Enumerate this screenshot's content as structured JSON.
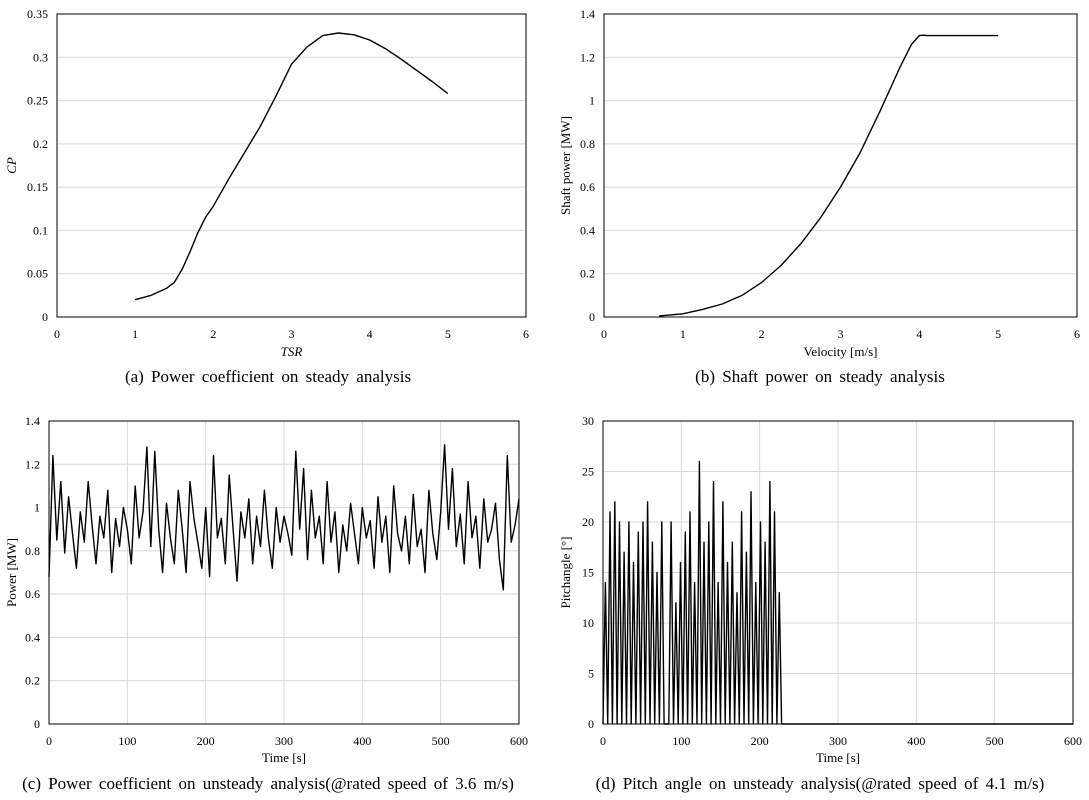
{
  "figure": {
    "charts": [
      {
        "id": "a",
        "caption": "(a)  Power coefficient on steady analysis",
        "xlabel": "TSR",
        "ylabel": "CP",
        "label_style": "italic",
        "x_ticks": [
          "0",
          "1",
          "2",
          "3",
          "4",
          "5",
          "6"
        ],
        "y_ticks": [
          "0",
          "0.05",
          "0.1",
          "0.15",
          "0.2",
          "0.25",
          "0.3",
          "0.35"
        ]
      },
      {
        "id": "b",
        "caption": "(b)  Shaft power on steady analysis",
        "xlabel": "Velocity [m/s]",
        "ylabel": "Shaft power [MW]",
        "label_style": "normal",
        "x_ticks": [
          "0",
          "1",
          "2",
          "3",
          "4",
          "5",
          "6"
        ],
        "y_ticks": [
          "0",
          "0.2",
          "0.4",
          "0.6",
          "0.8",
          "1",
          "1.2",
          "1.4"
        ]
      },
      {
        "id": "c",
        "caption": "(c)  Power coefficient on unsteady analysis(@rated speed of 3.6 m/s)",
        "xlabel": "Time [s]",
        "ylabel": "Power [MW]",
        "label_style": "normal",
        "x_ticks": [
          "0",
          "100",
          "200",
          "300",
          "400",
          "500",
          "600"
        ],
        "y_ticks": [
          "0",
          "0.2",
          "0.4",
          "0.6",
          "0.8",
          "1",
          "1.2",
          "1.4"
        ]
      },
      {
        "id": "d",
        "caption": "(d)  Pitch angle on unsteady analysis(@rated speed of 4.1 m/s)",
        "xlabel": "Time [s]",
        "ylabel": "Pitchangle [°]",
        "label_style": "normal",
        "x_ticks": [
          "0",
          "100",
          "200",
          "300",
          "400",
          "500",
          "600"
        ],
        "y_ticks": [
          "0",
          "5",
          "10",
          "15",
          "20",
          "25",
          "30"
        ]
      }
    ]
  },
  "chart_data": [
    {
      "type": "line",
      "title": "",
      "xlabel": "TSR",
      "ylabel": "CP",
      "xlim": [
        0,
        6
      ],
      "ylim": [
        0,
        0.35
      ],
      "grid": "horizontal",
      "series": [
        {
          "color": "#000000",
          "x": [
            1.0,
            1.2,
            1.4,
            1.5,
            1.6,
            1.7,
            1.8,
            1.9,
            2.0,
            2.2,
            2.4,
            2.6,
            2.8,
            3.0,
            3.2,
            3.4,
            3.6,
            3.8,
            4.0,
            4.2,
            4.4,
            4.6,
            4.8,
            5.0
          ],
          "y": [
            0.02,
            0.025,
            0.033,
            0.04,
            0.055,
            0.075,
            0.097,
            0.115,
            0.128,
            0.16,
            0.19,
            0.22,
            0.255,
            0.292,
            0.312,
            0.325,
            0.328,
            0.326,
            0.32,
            0.31,
            0.298,
            0.285,
            0.272,
            0.258
          ]
        }
      ]
    },
    {
      "type": "line",
      "title": "",
      "xlabel": "Velocity [m/s]",
      "ylabel": "Shaft power [MW]",
      "xlim": [
        0,
        6
      ],
      "ylim": [
        0,
        1.4
      ],
      "grid": "horizontal",
      "series": [
        {
          "color": "#000000",
          "x": [
            0.7,
            1.0,
            1.25,
            1.5,
            1.75,
            2.0,
            2.25,
            2.5,
            2.75,
            3.0,
            3.25,
            3.5,
            3.75,
            3.9,
            4.0,
            4.05,
            4.1,
            4.5,
            5.0
          ],
          "y": [
            0.005,
            0.015,
            0.035,
            0.06,
            0.1,
            0.16,
            0.24,
            0.34,
            0.46,
            0.6,
            0.76,
            0.95,
            1.15,
            1.26,
            1.3,
            1.302,
            1.3,
            1.3,
            1.3
          ]
        }
      ]
    },
    {
      "type": "line",
      "title": "",
      "xlabel": "Time [s]",
      "ylabel": "Power [MW]",
      "xlim": [
        0,
        600
      ],
      "ylim": [
        0,
        1.4
      ],
      "grid": "both",
      "series": [
        {
          "color": "#000000",
          "x": [
            0,
            5,
            10,
            15,
            20,
            25,
            30,
            35,
            40,
            45,
            50,
            55,
            60,
            65,
            70,
            75,
            80,
            85,
            90,
            95,
            100,
            105,
            110,
            115,
            120,
            125,
            130,
            135,
            140,
            145,
            150,
            155,
            160,
            165,
            170,
            175,
            180,
            185,
            190,
            195,
            200,
            205,
            210,
            215,
            220,
            225,
            230,
            235,
            240,
            245,
            250,
            255,
            260,
            265,
            270,
            275,
            280,
            285,
            290,
            295,
            300,
            305,
            310,
            315,
            320,
            325,
            330,
            335,
            340,
            345,
            350,
            355,
            360,
            365,
            370,
            375,
            380,
            385,
            390,
            395,
            400,
            405,
            410,
            415,
            420,
            425,
            430,
            435,
            440,
            445,
            450,
            455,
            460,
            465,
            470,
            475,
            480,
            485,
            490,
            495,
            500,
            505,
            510,
            515,
            520,
            525,
            530,
            535,
            540,
            545,
            550,
            555,
            560,
            565,
            570,
            575,
            580,
            585,
            590,
            595,
            600
          ],
          "y": [
            0.68,
            1.24,
            0.85,
            1.12,
            0.79,
            1.05,
            0.88,
            0.72,
            0.98,
            0.84,
            1.12,
            0.92,
            0.74,
            0.96,
            0.86,
            1.08,
            0.7,
            0.95,
            0.82,
            1.0,
            0.9,
            0.74,
            1.1,
            0.86,
            0.98,
            1.28,
            0.82,
            1.26,
            0.9,
            0.7,
            1.02,
            0.86,
            0.74,
            1.08,
            0.9,
            0.7,
            1.12,
            0.95,
            0.84,
            0.72,
            1.0,
            0.68,
            1.24,
            0.86,
            0.95,
            0.74,
            1.15,
            0.9,
            0.66,
            0.98,
            0.86,
            1.04,
            0.74,
            0.96,
            0.82,
            1.08,
            0.86,
            0.72,
            1.0,
            0.84,
            0.96,
            0.88,
            0.78,
            1.26,
            0.9,
            1.18,
            0.76,
            1.08,
            0.86,
            0.96,
            0.74,
            1.12,
            0.84,
            0.98,
            0.7,
            0.92,
            0.8,
            1.02,
            0.88,
            0.74,
            1.0,
            0.86,
            0.94,
            0.72,
            1.05,
            0.84,
            0.96,
            0.7,
            1.1,
            0.88,
            0.8,
            0.96,
            0.74,
            1.06,
            0.82,
            0.9,
            0.7,
            1.08,
            0.88,
            0.76,
            0.98,
            1.29,
            0.9,
            1.18,
            0.82,
            0.97,
            0.74,
            1.12,
            0.86,
            0.96,
            0.72,
            1.04,
            0.84,
            0.9,
            1.02,
            0.76,
            0.62,
            1.24,
            0.84,
            0.92,
            1.04
          ]
        }
      ]
    },
    {
      "type": "line",
      "title": "",
      "xlabel": "Time [s]",
      "ylabel": "Pitchangle [°]",
      "xlim": [
        0,
        600
      ],
      "ylim": [
        0,
        30
      ],
      "grid": "both",
      "series": [
        {
          "color": "#000000",
          "x": [
            0,
            3,
            6,
            9,
            12,
            15,
            18,
            21,
            24,
            27,
            30,
            33,
            36,
            39,
            42,
            45,
            48,
            51,
            54,
            57,
            60,
            63,
            66,
            69,
            72,
            75,
            78,
            81,
            84,
            87,
            90,
            93,
            96,
            99,
            102,
            105,
            108,
            111,
            114,
            117,
            120,
            123,
            126,
            129,
            132,
            135,
            138,
            141,
            144,
            147,
            150,
            153,
            156,
            159,
            162,
            165,
            168,
            171,
            174,
            177,
            180,
            183,
            186,
            189,
            192,
            195,
            198,
            201,
            204,
            207,
            210,
            213,
            216,
            219,
            222,
            225,
            228,
            231,
            234,
            237,
            240,
            243,
            246,
            249,
            252,
            255,
            258,
            261,
            264,
            267,
            270,
            273,
            276,
            279,
            282,
            285,
            288,
            291,
            294,
            297,
            300,
            303,
            306,
            309,
            312,
            315,
            318,
            321,
            324,
            327,
            330,
            333,
            336,
            339,
            342,
            345,
            348,
            351,
            354,
            357,
            360,
            363,
            366,
            369,
            372,
            375,
            378,
            381,
            384,
            387,
            390,
            393,
            396,
            399,
            402,
            405,
            408,
            411,
            414,
            417,
            420,
            423,
            426,
            429,
            432,
            435,
            438,
            441,
            444,
            447,
            450,
            453,
            456,
            459,
            462,
            465,
            468,
            471,
            474,
            477,
            480,
            483,
            486,
            489,
            492,
            495,
            498,
            501,
            504,
            507,
            510,
            513,
            516,
            519,
            522,
            525,
            528,
            531,
            534,
            537,
            540,
            543,
            546,
            549,
            552,
            555,
            558,
            561,
            564,
            567,
            570,
            573,
            576,
            579,
            582,
            585,
            588,
            591,
            594,
            597,
            600
          ],
          "y": [
            0,
            14,
            0,
            21,
            0,
            22,
            0,
            20,
            0,
            17,
            0,
            20,
            0,
            16,
            0,
            19,
            0,
            20,
            0,
            22,
            0,
            18,
            0,
            15,
            0,
            20,
            0,
            0,
            0,
            20,
            0,
            12,
            0,
            16,
            0,
            19,
            0,
            21,
            0,
            14,
            0,
            26,
            0,
            18,
            0,
            20,
            0,
            24,
            0,
            14,
            0,
            22,
            0,
            16,
            0,
            18,
            0,
            13,
            0,
            21,
            0,
            17,
            0,
            23,
            0,
            14,
            0,
            20,
            0,
            18,
            0,
            24,
            0,
            21,
            0,
            13,
            0,
            0,
            0,
            0,
            0,
            0,
            0,
            0,
            0,
            0,
            0,
            0,
            0,
            0,
            0,
            0,
            0,
            0,
            0,
            0,
            0,
            0,
            0,
            0,
            0,
            0,
            0,
            0,
            0,
            0,
            0,
            0,
            0,
            0,
            0,
            0,
            0,
            0,
            0,
            0,
            0,
            0,
            0,
            0,
            0,
            0,
            0,
            0,
            0,
            0,
            0,
            0,
            0,
            0,
            0,
            0,
            0,
            0,
            0,
            0,
            0,
            0,
            0,
            0,
            0,
            0,
            0,
            0,
            0,
            0,
            0,
            0,
            0,
            0,
            0,
            0,
            0,
            0,
            0,
            0,
            0,
            0,
            0,
            0,
            0,
            0,
            0,
            0,
            0,
            0,
            0,
            0,
            0,
            0,
            0,
            0,
            0,
            0,
            0,
            0,
            0,
            0,
            0,
            0,
            0,
            0,
            0,
            0,
            0,
            0,
            0,
            0,
            0,
            0,
            0,
            0,
            0,
            0,
            0,
            0,
            0,
            0,
            0,
            0,
            0
          ]
        }
      ]
    }
  ]
}
